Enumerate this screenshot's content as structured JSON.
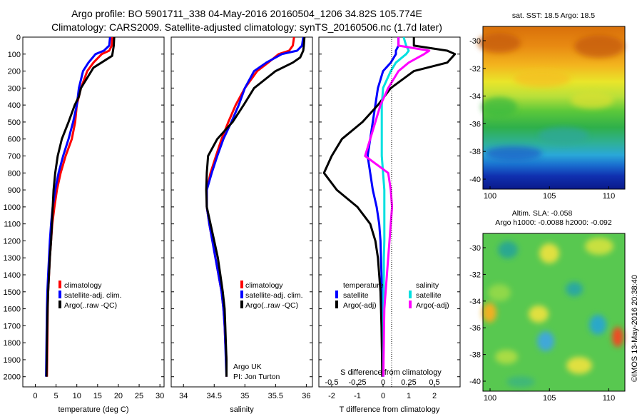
{
  "header": {
    "line1": "Argo profile: BO 5901711_338 04-May-2016 20160504_1206 34.82S 105.774E",
    "line2": "Climatology: CARS2009. Satellite-adjusted climatology: synTS_20160506.nc (1.7d later)"
  },
  "colors": {
    "climatology": "#ff0000",
    "satellite": "#0000ff",
    "argo": "#000000",
    "cyan": "#00e0e0",
    "magenta": "#ff00ff"
  },
  "depth_ticks": [
    0,
    100,
    200,
    300,
    400,
    500,
    600,
    700,
    800,
    900,
    1000,
    1100,
    1200,
    1300,
    1400,
    1500,
    1600,
    1700,
    1800,
    1900,
    2000
  ],
  "temperature_panel": {
    "xlabel": "temperature (deg C)",
    "xticks": [
      0,
      5,
      10,
      15,
      20,
      25,
      30
    ],
    "legend": [
      "climatology",
      "satellite-adj. clim.",
      "Argo(..raw -QC)"
    ]
  },
  "salinity_panel": {
    "xlabel": "salinity",
    "xticks": [
      "34",
      "34.5",
      "35",
      "35.5",
      "36"
    ],
    "legend": [
      "climatology",
      "satellite-adj. clim.",
      "Argo(..raw -QC)"
    ],
    "note1": "Argo UK",
    "note2": "PI: Jon Turton"
  },
  "difference_panel": {
    "xlabel": "T difference from climatology",
    "xticks": [
      "-2",
      "-1",
      "0",
      "1",
      "2"
    ],
    "xlabel_top": "S difference from climatology",
    "xticks_top": [
      "-0.5",
      "-0.25",
      "0",
      "0.25",
      "0.5"
    ],
    "legend_left_title": "temperature",
    "legend_right_title": "salinity",
    "legend_left": [
      "satellite",
      "Argo(-adj)"
    ],
    "legend_right": [
      "satellite",
      "Argo(-adj)"
    ]
  },
  "sst_map": {
    "title": "sat. SST: 18.5 Argo: 18.5",
    "yticks": [
      "-30",
      "-32",
      "-34",
      "-36",
      "-38",
      "-40"
    ],
    "xticks": [
      "100",
      "105",
      "110"
    ]
  },
  "sla_map": {
    "title1": "Altim. SLA: -0.058",
    "title2": "Argo h1000: -0.0088 h2000: -0.092",
    "yticks": [
      "-30",
      "-32",
      "-34",
      "-36",
      "-38",
      "-40"
    ],
    "xticks": [
      "100",
      "105",
      "110"
    ]
  },
  "credit": "©IMOS 13-May-2016 20:38:40",
  "chart_data": [
    {
      "type": "line",
      "title": "",
      "xlabel": "temperature (deg C)",
      "ylabel": "",
      "xlim": [
        -3,
        31
      ],
      "ylim": [
        2060,
        0
      ],
      "y_axis_reversed": true,
      "series": [
        {
          "name": "climatology",
          "x": [
            18.5,
            18.4,
            17.8,
            16,
            14,
            12.5,
            11,
            10,
            9.6,
            8.8,
            7.3,
            6.1,
            5.2,
            4.6,
            4.1,
            3.8,
            3.5,
            3.3,
            3.1,
            3.0,
            2.9,
            2.85,
            2.8
          ],
          "y": [
            0,
            50,
            80,
            100,
            150,
            200,
            300,
            400,
            500,
            600,
            700,
            800,
            900,
            1000,
            1100,
            1200,
            1300,
            1400,
            1500,
            1600,
            1800,
            1900,
            2000
          ]
        },
        {
          "name": "satellite-adj. clim.",
          "x": [
            18,
            17.8,
            16.5,
            14.5,
            12.8,
            11.5,
            10.5,
            10,
            9.1,
            8,
            6.7,
            5.6,
            4.8,
            4.2,
            3.8,
            3.5,
            3.3,
            3.1,
            2.9,
            2.8,
            2.7,
            2.65,
            2.6
          ],
          "y": [
            0,
            50,
            80,
            100,
            150,
            200,
            300,
            400,
            500,
            600,
            700,
            800,
            900,
            1000,
            1100,
            1200,
            1300,
            1400,
            1500,
            1600,
            1800,
            1900,
            2000
          ]
        },
        {
          "name": "Argo(..raw -QC)",
          "x": [
            19,
            18.9,
            18.7,
            18.5,
            14,
            11,
            10.5,
            9.5,
            8,
            6.4,
            5.4,
            4.8,
            4.4,
            4.2,
            4.0,
            3.8,
            3.5,
            3.3,
            3.1,
            2.95,
            2.8,
            2.75,
            2.7
          ],
          "y": [
            0,
            50,
            80,
            110,
            180,
            300,
            350,
            400,
            500,
            600,
            700,
            800,
            900,
            1000,
            1100,
            1200,
            1300,
            1400,
            1500,
            1600,
            1800,
            1900,
            2000
          ]
        }
      ]
    },
    {
      "type": "line",
      "title": "",
      "xlabel": "salinity",
      "ylabel": "",
      "xlim": [
        33.8,
        36.1
      ],
      "ylim": [
        2060,
        0
      ],
      "y_axis_reversed": true,
      "series": [
        {
          "name": "climatology",
          "x": [
            35.8,
            35.78,
            35.72,
            35.55,
            35.38,
            35.2,
            35.0,
            34.85,
            34.73,
            34.62,
            34.53,
            34.44,
            34.38,
            34.38,
            34.42,
            34.47,
            34.52,
            34.57,
            34.62,
            34.65,
            34.67,
            34.68,
            34.7,
            34.7
          ],
          "y": [
            0,
            50,
            80,
            100,
            150,
            200,
            300,
            400,
            500,
            600,
            700,
            800,
            900,
            1000,
            1100,
            1200,
            1300,
            1400,
            1500,
            1600,
            1700,
            1800,
            1900,
            2000
          ]
        },
        {
          "name": "satellite-adj. clim.",
          "x": [
            35.95,
            35.93,
            35.85,
            35.6,
            35.35,
            35.15,
            35.0,
            34.9,
            34.78,
            34.65,
            34.55,
            34.46,
            34.38,
            34.38,
            34.42,
            34.47,
            34.52,
            34.57,
            34.62,
            34.65,
            34.67,
            34.68,
            34.69,
            34.7
          ],
          "y": [
            0,
            50,
            80,
            100,
            150,
            200,
            300,
            400,
            500,
            600,
            700,
            800,
            900,
            1000,
            1100,
            1200,
            1300,
            1400,
            1500,
            1600,
            1700,
            1800,
            1900,
            2000
          ]
        },
        {
          "name": "Argo(..raw -QC)",
          "x": [
            35.97,
            35.96,
            35.95,
            35.9,
            35.78,
            35.5,
            35.15,
            34.98,
            34.8,
            34.55,
            34.4,
            34.38,
            34.37,
            34.38,
            34.44,
            34.5,
            34.56,
            34.6,
            34.64,
            34.67,
            34.68,
            34.69,
            34.7,
            34.7
          ],
          "y": [
            0,
            50,
            80,
            120,
            150,
            200,
            300,
            400,
            500,
            600,
            700,
            800,
            900,
            1000,
            1100,
            1200,
            1300,
            1400,
            1500,
            1600,
            1700,
            1800,
            1900,
            2000
          ]
        }
      ]
    },
    {
      "type": "line",
      "title": "",
      "xlabel": "T difference from climatology",
      "ylabel": "",
      "xlim": [
        -2.5,
        3.0
      ],
      "ylim": [
        2060,
        0
      ],
      "y_axis_reversed": true,
      "series": [
        {
          "name": "temperature satellite",
          "x": [
            0.6,
            0.6,
            0.5,
            0.5,
            0.3,
            0,
            -0.2,
            -0.3,
            -0.4,
            -0.5,
            -0.6,
            -0.5,
            -0.4,
            -0.25,
            -0.15,
            -0.1,
            -0.08,
            -0.06,
            -0.05,
            -0.04,
            -0.03,
            -0.03,
            -0.02,
            -0.02
          ],
          "y": [
            0,
            50,
            80,
            100,
            150,
            200,
            300,
            400,
            500,
            600,
            700,
            800,
            900,
            1000,
            1100,
            1200,
            1300,
            1400,
            1500,
            1600,
            1700,
            1800,
            1900,
            2000
          ]
        },
        {
          "name": "temperature Argo(-adj)",
          "x": [
            1.2,
            1.2,
            2.5,
            2.8,
            2.5,
            1.2,
            0.3,
            -0.2,
            -0.8,
            -1.6,
            -2.0,
            -2.3,
            -1.8,
            -1.0,
            -0.5,
            -0.3,
            -0.2,
            -0.15,
            -0.1,
            -0.08,
            -0.06,
            -0.05,
            -0.04,
            -0.03
          ],
          "y": [
            0,
            50,
            80,
            100,
            150,
            200,
            300,
            400,
            500,
            600,
            700,
            800,
            900,
            1000,
            1100,
            1200,
            1300,
            1400,
            1500,
            1600,
            1700,
            1800,
            1900,
            2000
          ]
        },
        {
          "name": "salinity satellite",
          "x": [
            0.8,
            0.9,
            1.0,
            0.9,
            0.5,
            0.3,
            0.0,
            -0.05,
            -0.05,
            -0.05,
            -0.05,
            0.0,
            0.05,
            0.05,
            0.05,
            0.05,
            0.03,
            0.03,
            0.02,
            0.02,
            0.02,
            0.02,
            0.01,
            0.01
          ],
          "y": [
            0,
            50,
            80,
            100,
            150,
            200,
            300,
            400,
            500,
            600,
            700,
            800,
            900,
            1000,
            1100,
            1200,
            1300,
            1400,
            1500,
            1600,
            1700,
            1800,
            1900,
            2000
          ]
        },
        {
          "name": "salinity Argo(-adj)",
          "x": [
            0.6,
            0.6,
            1.8,
            1.6,
            1.0,
            0.6,
            0.2,
            -0.1,
            -0.3,
            -0.5,
            -0.7,
            0.2,
            0.3,
            0.35,
            0.3,
            0.25,
            0.2,
            0.15,
            0.1,
            0.05,
            0.04,
            0.03,
            0.02,
            0.01
          ],
          "y": [
            0,
            50,
            80,
            100,
            150,
            200,
            300,
            400,
            500,
            600,
            700,
            800,
            900,
            1000,
            1100,
            1200,
            1300,
            1400,
            1500,
            1600,
            1700,
            1800,
            1900,
            2000
          ]
        }
      ]
    }
  ]
}
